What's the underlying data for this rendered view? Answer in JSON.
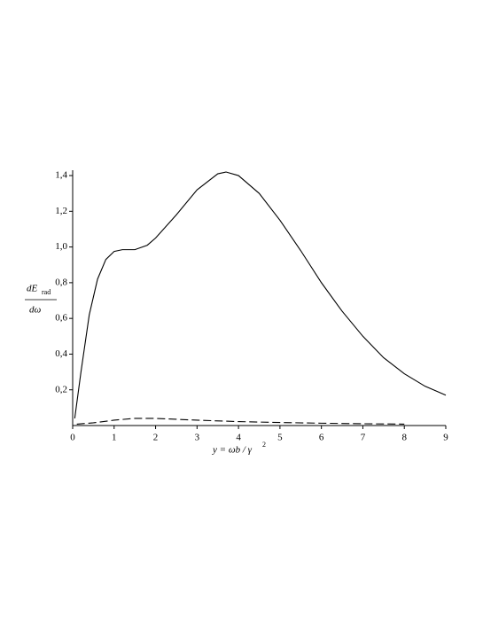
{
  "chart_data": {
    "type": "line",
    "ylabel": {
      "numerator": "dE",
      "subscript": "rad",
      "denominator": "dω"
    },
    "xlabel": "y = ωb / γ",
    "xlabel_superscript": "2",
    "xlim": [
      0,
      9
    ],
    "xticks": [
      0,
      1,
      2,
      3,
      4,
      5,
      6,
      7,
      8,
      9
    ],
    "ylim": [
      0,
      1.43
    ],
    "yticks": [
      {
        "value": 0.2,
        "label": "0,2"
      },
      {
        "value": 0.4,
        "label": "0,4"
      },
      {
        "value": 0.6,
        "label": "0,6"
      },
      {
        "value": 0.8,
        "label": "0,8"
      },
      {
        "value": 1.0,
        "label": "1,0"
      },
      {
        "value": 1.2,
        "label": "1,2"
      },
      {
        "value": 1.4,
        "label": "1,4"
      }
    ],
    "grid": false,
    "series": [
      {
        "color": "#000000",
        "style": "solid",
        "x": [
          0.05,
          0.2,
          0.4,
          0.6,
          0.8,
          1.0,
          1.2,
          1.5,
          1.8,
          2.0,
          2.5,
          3.0,
          3.5,
          3.7,
          4.0,
          4.5,
          5.0,
          5.5,
          6.0,
          6.5,
          7.0,
          7.5,
          8.0,
          8.5,
          9.0
        ],
        "values": [
          0.04,
          0.3,
          0.62,
          0.82,
          0.93,
          0.975,
          0.985,
          0.985,
          1.01,
          1.05,
          1.18,
          1.32,
          1.41,
          1.42,
          1.4,
          1.3,
          1.15,
          0.98,
          0.8,
          0.64,
          0.5,
          0.38,
          0.29,
          0.22,
          0.17
        ]
      },
      {
        "color": "#000000",
        "style": "dashed",
        "x": [
          0.1,
          0.5,
          1.0,
          1.5,
          2.0,
          2.5,
          3.0,
          4.0,
          5.0,
          6.0,
          7.0,
          8.0
        ],
        "values": [
          0.008,
          0.015,
          0.03,
          0.04,
          0.04,
          0.035,
          0.03,
          0.022,
          0.017,
          0.013,
          0.01,
          0.008
        ]
      }
    ]
  }
}
